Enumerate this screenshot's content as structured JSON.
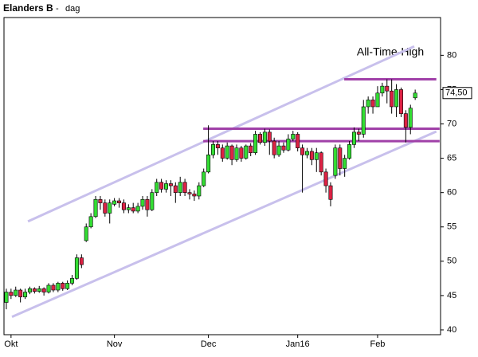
{
  "chart_data": {
    "type": "candlestick",
    "title": "Elanders B",
    "separator": "-",
    "subtitle": "dag",
    "categories": [
      null,
      "Okt",
      null,
      null,
      null,
      null,
      null,
      null,
      null,
      null,
      null,
      null,
      null,
      null,
      null,
      null,
      null,
      null,
      null,
      null,
      null,
      null,
      null,
      "Nov",
      null,
      null,
      null,
      null,
      null,
      null,
      null,
      null,
      null,
      null,
      null,
      null,
      null,
      null,
      null,
      null,
      null,
      null,
      null,
      "Dec",
      null,
      null,
      null,
      null,
      null,
      null,
      null,
      null,
      null,
      null,
      null,
      null,
      null,
      null,
      null,
      null,
      null,
      null,
      "Jan16",
      null,
      null,
      null,
      null,
      null,
      null,
      null,
      null,
      null,
      null,
      null,
      null,
      null,
      null,
      null,
      null,
      "Feb",
      null,
      null,
      null,
      null,
      null,
      null,
      null,
      null
    ],
    "open": [
      44,
      45.5,
      45,
      45.8,
      44.8,
      45.5,
      46,
      45.6,
      46,
      45.5,
      46.5,
      45.8,
      46.8,
      46,
      46.8,
      47.5,
      50.5,
      53,
      55,
      56.5,
      59,
      58.5,
      57,
      58.3,
      58.8,
      58.5,
      57.5,
      57.8,
      57.3,
      58,
      59,
      57.5,
      60,
      61.5,
      60.5,
      61.3,
      61,
      60,
      61.5,
      60,
      59.8,
      59.5,
      61,
      63,
      65.5,
      67,
      66.5,
      65,
      66.8,
      64.8,
      66.5,
      65,
      66.8,
      65.8,
      68.5,
      67.3,
      68.8,
      67.5,
      65.5,
      66.8,
      66.2,
      67.8,
      68.5,
      66.5,
      65.5,
      66,
      64.8,
      65.8,
      63,
      61,
      62.5,
      66.5,
      63.5,
      65,
      67,
      68.8,
      68.5,
      72.5,
      73.5,
      72.5,
      74.5,
      75.5,
      74.8,
      72.5,
      75,
      71.5,
      69.5,
      73.8
    ],
    "high": [
      46,
      46,
      46.3,
      46,
      46,
      46.3,
      46.2,
      46.4,
      46.2,
      46.8,
      46.8,
      47,
      47,
      47.2,
      48,
      51,
      51,
      55.5,
      57,
      59.5,
      59.5,
      59,
      59,
      59.2,
      59.2,
      59,
      58.3,
      58.5,
      58.5,
      59.5,
      59.5,
      60.5,
      62,
      62,
      61.8,
      61.8,
      61.5,
      62.3,
      62,
      60.5,
      60.3,
      61.5,
      63.5,
      69.8,
      67.5,
      67.5,
      67,
      67.3,
      67,
      67,
      66.8,
      67,
      67.2,
      69,
      68.8,
      69.3,
      69.2,
      68,
      67.5,
      67.3,
      68.5,
      69,
      68.8,
      67,
      66.5,
      66.5,
      66.5,
      66,
      63.5,
      61.5,
      67,
      67,
      65.5,
      67.5,
      69.5,
      69.3,
      73.5,
      74,
      74,
      75.5,
      76,
      76.5,
      76.5,
      75.8,
      75.3,
      72,
      72.8,
      75
    ],
    "low": [
      43,
      44.5,
      44.8,
      44,
      44.5,
      45.2,
      45.3,
      45.4,
      45,
      45.3,
      45.5,
      45.5,
      45.7,
      45.8,
      46.5,
      47.3,
      49,
      52.8,
      54.8,
      56.3,
      57.5,
      56.5,
      55.5,
      58,
      57.8,
      57,
      57,
      57,
      57,
      57.5,
      56.5,
      57.3,
      59.5,
      60,
      60,
      59.5,
      58.5,
      59.5,
      59.5,
      59,
      58.8,
      59,
      60.8,
      62.8,
      65,
      65.5,
      64.5,
      64.8,
      64,
      64.5,
      64.5,
      64.8,
      65.3,
      65.5,
      67,
      66.8,
      65.5,
      65,
      65.2,
      65.8,
      66,
      67.5,
      66,
      60,
      65,
      64,
      63,
      62.5,
      60,
      58,
      62,
      62.5,
      62.3,
      64.8,
      66.5,
      67.5,
      68,
      71.5,
      71.5,
      72.5,
      74,
      73,
      71.5,
      71,
      71,
      67.3,
      68.5,
      73.5
    ],
    "close": [
      45.5,
      45,
      45.8,
      44.8,
      45.5,
      46,
      45.6,
      46,
      45.5,
      46.5,
      45.8,
      46.8,
      46,
      46.8,
      47.5,
      50.5,
      49.5,
      55,
      56.5,
      59,
      58.5,
      57,
      58.5,
      58.8,
      58.5,
      57.5,
      57.8,
      57.3,
      58,
      59,
      57.5,
      60,
      61.5,
      60.5,
      61.3,
      61,
      60,
      61.5,
      60,
      59.8,
      59.5,
      61,
      63,
      65.5,
      67,
      66.5,
      65,
      66.8,
      64.8,
      66.5,
      65,
      66.8,
      65.8,
      68.5,
      67.3,
      68.8,
      67.5,
      65.5,
      66.8,
      66.2,
      67.8,
      68.5,
      66.5,
      65.5,
      66,
      64.8,
      65.8,
      63,
      61,
      59,
      66.5,
      63.5,
      65,
      67,
      68.8,
      68.5,
      72.5,
      73.5,
      72.5,
      74.5,
      75.5,
      74.8,
      72.5,
      75,
      71.5,
      69.5,
      72.3,
      74.5
    ],
    "up_color": "#33dd33",
    "down_color": "#dd2244",
    "last_value_label": "74,50",
    "xlim": [
      -0.5,
      92.4
    ],
    "ylim": [
      39.3,
      85.5
    ],
    "yticks": [
      40,
      45,
      50,
      55,
      60,
      65,
      70,
      75,
      80
    ],
    "lines": [
      {
        "x": [
          4.6,
          86.8
        ],
        "y": [
          55.8,
          81.3
        ],
        "color": "#c8c0ec",
        "width": 3
      },
      {
        "x": [
          1.2,
          91.5
        ],
        "y": [
          41.9,
          68.9
        ],
        "color": "#c8c0ec",
        "width": 3
      },
      {
        "x": [
          71.9,
          91.5
        ],
        "y": [
          76.5,
          76.5
        ],
        "color": "#a040a8",
        "width": 3
      },
      {
        "x": [
          41.9,
          92.2
        ],
        "y": [
          69.3,
          69.3
        ],
        "color": "#a040a8",
        "width": 3
      },
      {
        "x": [
          41.9,
          92.2
        ],
        "y": [
          67.5,
          67.5
        ],
        "color": "#a040a8",
        "width": 3
      }
    ],
    "annotation": "All-Time-High"
  }
}
